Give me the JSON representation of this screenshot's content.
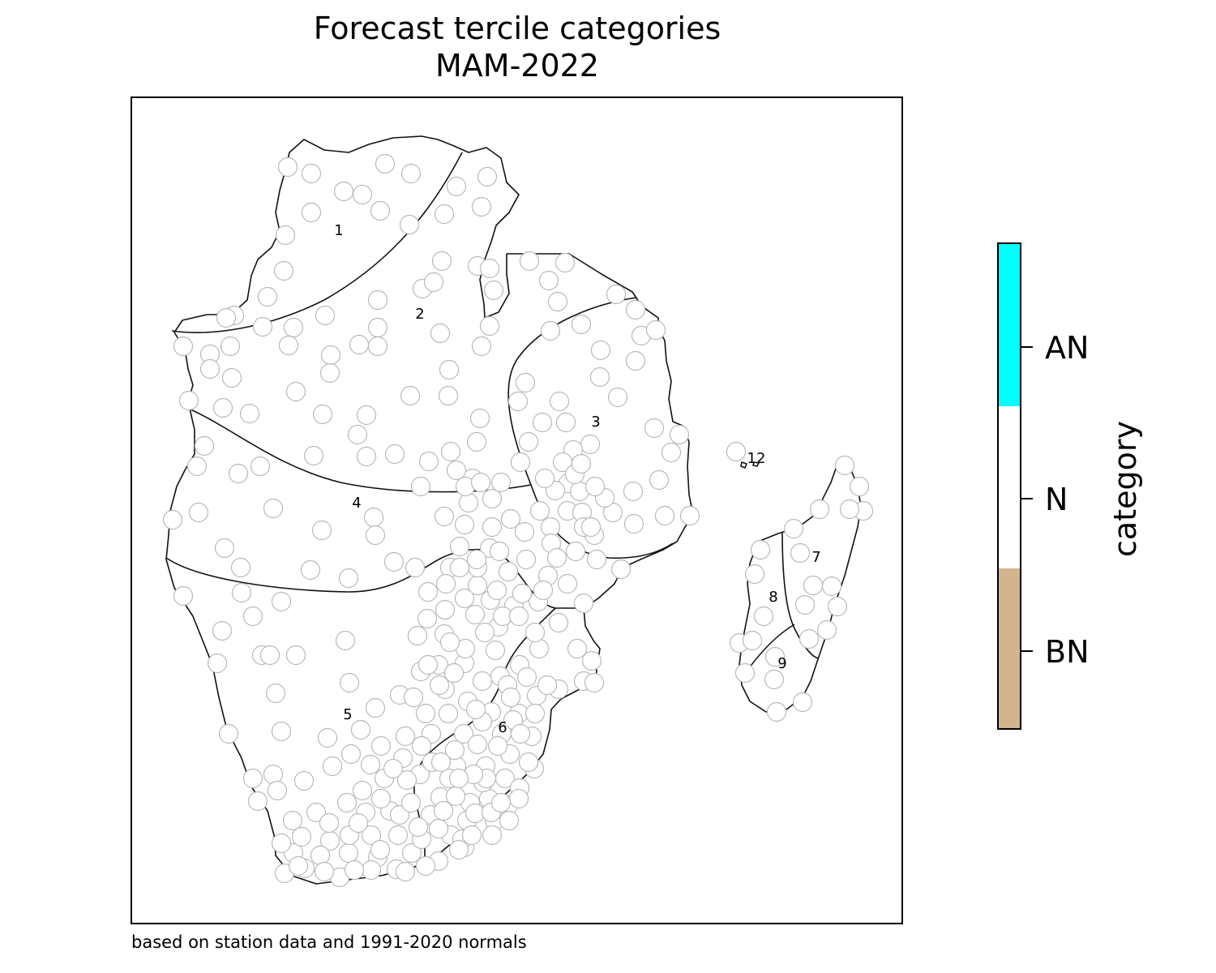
{
  "title": {
    "line1": "Forecast tercile categories",
    "line2": "MAM-2022"
  },
  "footnote": "based on station data and 1991-2020 normals",
  "colorbar": {
    "title": "category",
    "categories": [
      {
        "label": "AN",
        "color": "#00ffff"
      },
      {
        "label": "N",
        "color": "#ffffff"
      },
      {
        "label": "BN",
        "color": "#d2b48c"
      }
    ]
  },
  "zones": [
    {
      "id": "1",
      "category": "N"
    },
    {
      "id": "2",
      "category": "N"
    },
    {
      "id": "3",
      "category": "N"
    },
    {
      "id": "4",
      "category": "N"
    },
    {
      "id": "5",
      "category": "N"
    },
    {
      "id": "6",
      "category": "N"
    },
    {
      "id": "7",
      "category": "N"
    },
    {
      "id": "8",
      "category": "N"
    },
    {
      "id": "9",
      "category": "N"
    },
    {
      "id": "12",
      "category": "N"
    }
  ],
  "colors": {
    "station_outline": "#b8b8b8",
    "border": "#111111",
    "frame": "#000000"
  }
}
